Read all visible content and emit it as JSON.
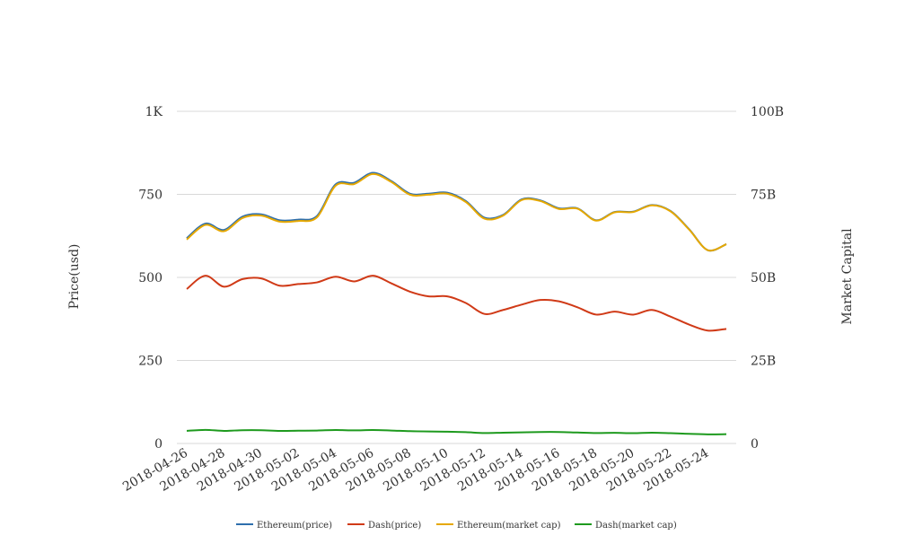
{
  "chart_data": {
    "type": "line",
    "x": [
      "2018-04-26",
      "2018-04-27",
      "2018-04-28",
      "2018-04-29",
      "2018-04-30",
      "2018-05-01",
      "2018-05-02",
      "2018-05-03",
      "2018-05-04",
      "2018-05-05",
      "2018-05-06",
      "2018-05-07",
      "2018-05-08",
      "2018-05-09",
      "2018-05-10",
      "2018-05-11",
      "2018-05-12",
      "2018-05-13",
      "2018-05-14",
      "2018-05-15",
      "2018-05-16",
      "2018-05-17",
      "2018-05-18",
      "2018-05-19",
      "2018-05-20",
      "2018-05-21",
      "2018-05-22",
      "2018-05-23",
      "2018-05-24",
      "2018-05-25"
    ],
    "x_tick_labels": [
      "2018-04-26",
      "2018-04-28",
      "2018-04-30",
      "2018-05-02",
      "2018-05-04",
      "2018-05-06",
      "2018-05-08",
      "2018-05-10",
      "2018-05-12",
      "2018-05-14",
      "2018-05-16",
      "2018-05-18",
      "2018-05-20",
      "2018-05-22",
      "2018-05-24"
    ],
    "y_left": {
      "label": "Price(usd)",
      "range": [
        0,
        1000
      ],
      "ticks": [
        0,
        250,
        500,
        750,
        1000
      ],
      "tick_labels": [
        "0",
        "250",
        "500",
        "750",
        "1K"
      ]
    },
    "y_right": {
      "label": "Market Capital",
      "range": [
        0,
        100000000000
      ],
      "ticks": [
        0,
        25000000000,
        50000000000,
        75000000000,
        100000000000
      ],
      "tick_labels": [
        "0",
        "25B",
        "50B",
        "75B",
        "100B"
      ]
    },
    "grid": true,
    "legend_position": "bottom",
    "series": [
      {
        "name": "Ethereum(price)",
        "axis": "left",
        "color": "#2e6fad",
        "values": [
          618,
          662,
          643,
          683,
          690,
          672,
          674,
          685,
          780,
          785,
          815,
          790,
          752,
          752,
          755,
          730,
          680,
          688,
          735,
          732,
          708,
          708,
          672,
          697,
          698,
          718,
          700,
          645,
          582,
          600
        ]
      },
      {
        "name": "Dash(price)",
        "axis": "left",
        "color": "#d03a17",
        "values": [
          465,
          505,
          472,
          495,
          497,
          475,
          480,
          485,
          502,
          488,
          505,
          482,
          457,
          443,
          443,
          423,
          390,
          402,
          418,
          432,
          428,
          410,
          388,
          397,
          388,
          402,
          382,
          358,
          340,
          345
        ]
      },
      {
        "name": "Ethereum(market cap)",
        "axis": "right",
        "color": "#e6a800",
        "values": [
          61400000000,
          65800000000,
          63900000000,
          67900000000,
          68600000000,
          66800000000,
          67000000000,
          68100000000,
          77600000000,
          78100000000,
          81100000000,
          78700000000,
          74900000000,
          74900000000,
          75200000000,
          72700000000,
          67700000000,
          68600000000,
          73300000000,
          73000000000,
          70600000000,
          70700000000,
          67100000000,
          69600000000,
          69700000000,
          71700000000,
          69900000000,
          64400000000,
          58200000000,
          60000000000
        ]
      },
      {
        "name": "Dash(market cap)",
        "axis": "right",
        "color": "#1e9a1e",
        "values": [
          3800000000,
          4100000000,
          3800000000,
          4000000000,
          4000000000,
          3800000000,
          3850000000,
          3900000000,
          4050000000,
          3950000000,
          4050000000,
          3900000000,
          3700000000,
          3600000000,
          3550000000,
          3400000000,
          3150000000,
          3250000000,
          3350000000,
          3450000000,
          3450000000,
          3300000000,
          3150000000,
          3200000000,
          3100000000,
          3250000000,
          3100000000,
          2900000000,
          2750000000,
          2800000000
        ]
      }
    ]
  }
}
